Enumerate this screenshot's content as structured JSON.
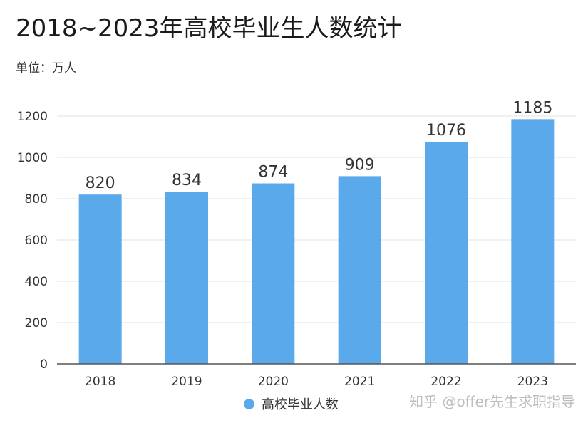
{
  "header": {
    "title": "2018~2023年高校毕业生人数统计",
    "unit_label": "单位：万人"
  },
  "watermark": "知乎 @offer先生求职指导",
  "colors": {
    "bar": "#5aa9ea",
    "grid": "#e2e2e2",
    "axis": "#555555",
    "tick_text": "#333333",
    "label_text": "#333333"
  },
  "chart_data": {
    "type": "bar",
    "title": "2018~2023年高校毕业生人数统计",
    "ylabel": "单位：万人",
    "xlabel": "",
    "categories": [
      "2018",
      "2019",
      "2020",
      "2021",
      "2022",
      "2023"
    ],
    "series": [
      {
        "name": "高校毕业人数",
        "values": [
          820,
          834,
          874,
          909,
          1076,
          1185
        ]
      }
    ],
    "ylim": [
      0,
      1200
    ],
    "yticks": [
      0,
      200,
      400,
      600,
      800,
      1000,
      1200
    ],
    "grid": true,
    "legend": "bottom-center",
    "data_labels": true
  }
}
